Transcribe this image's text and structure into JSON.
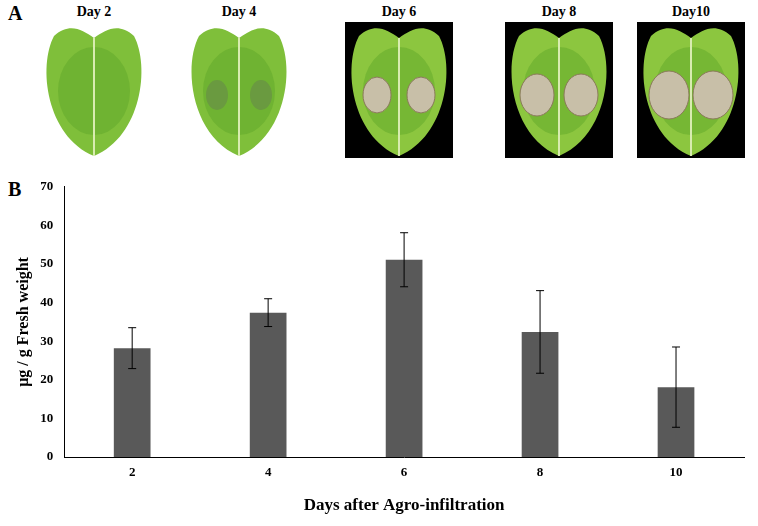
{
  "panel_labels": [
    "A",
    "B"
  ],
  "images": {
    "captions": [
      "Day 2",
      "Day 4",
      "Day 6",
      "Day 8",
      "Day10"
    ]
  },
  "chart_data": {
    "type": "bar",
    "categories": [
      "2",
      "4",
      "6",
      "8",
      "10"
    ],
    "values": [
      28.2,
      37.4,
      51.1,
      32.4,
      18.1
    ],
    "errors": [
      5.3,
      3.6,
      7.0,
      10.7,
      10.4
    ],
    "color": "#595959",
    "x_label": "Days after Agro-infiltration",
    "y_label": "μg / g Fresh weight",
    "ylim": [
      0,
      70
    ],
    "yticks": [
      0,
      10,
      20,
      30,
      40,
      50,
      60,
      70
    ],
    "grid": false
  }
}
